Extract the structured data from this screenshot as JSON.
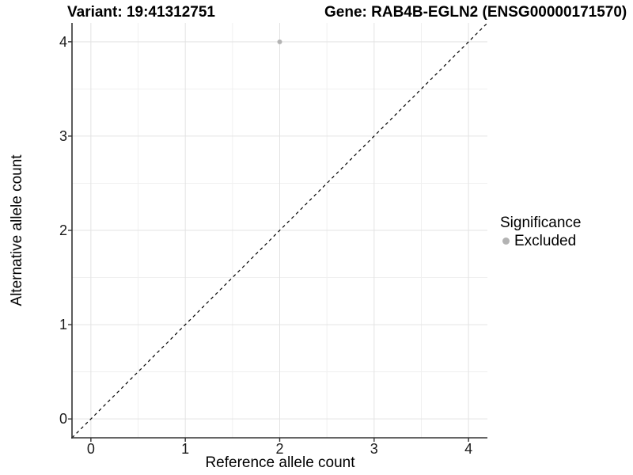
{
  "titles": {
    "variant": "Variant: 19:41312751",
    "gene": "Gene: RAB4B-EGLN2 (ENSG00000171570)"
  },
  "legend": {
    "title": "Significance",
    "items": [
      {
        "label": "Excluded",
        "color": "#b3b3b3"
      }
    ]
  },
  "colors": {
    "background": "#ffffff",
    "grid_major": "#e3e3e3",
    "grid_minor": "#f0f0f0",
    "axis_line": "#333333",
    "text": "#000000",
    "excluded_point": "#b3b3b3",
    "reference_line": "#000000"
  },
  "chart_data": {
    "type": "scatter",
    "titles": [
      "Variant: 19:41312751",
      "Gene: RAB4B-EGLN2 (ENSG00000171570)"
    ],
    "xlabel": "Reference allele count",
    "ylabel": "Alternative allele count",
    "xlim": [
      -0.2,
      4.2
    ],
    "ylim": [
      -0.2,
      4.2
    ],
    "x_ticks": [
      0,
      1,
      2,
      3,
      4
    ],
    "y_ticks": [
      0,
      1,
      2,
      3,
      4
    ],
    "x_minor_ticks": [
      0.5,
      1.5,
      2.5,
      3.5
    ],
    "y_minor_ticks": [
      0.5,
      1.5,
      2.5,
      3.5
    ],
    "grid": true,
    "legend_position": "right",
    "series": [
      {
        "name": "Excluded",
        "color": "#b3b3b3",
        "points": [
          [
            2,
            4
          ]
        ]
      }
    ],
    "reference_line": {
      "slope": 1,
      "intercept": 0,
      "style": "dashed",
      "color": "#000000"
    }
  }
}
